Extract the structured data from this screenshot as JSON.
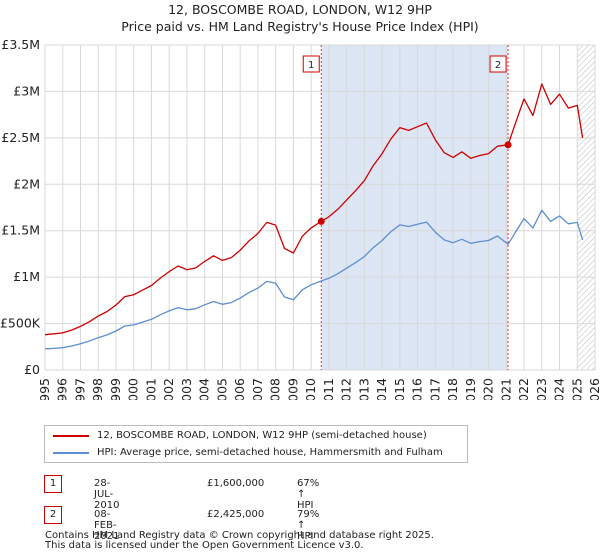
{
  "chart_data": {
    "type": "line",
    "title": "12, BOSCOMBE ROAD, LONDON, W12 9HP",
    "subtitle": "Price paid vs. HM Land Registry's House Price Index (HPI)",
    "xlim": [
      1995,
      2026
    ],
    "ylim": [
      0,
      3500000
    ],
    "x_ticks": [
      1995,
      1996,
      1997,
      1998,
      1999,
      2000,
      2001,
      2002,
      2003,
      2004,
      2005,
      2006,
      2007,
      2008,
      2009,
      2010,
      2011,
      2012,
      2013,
      2014,
      2015,
      2016,
      2017,
      2018,
      2019,
      2020,
      2021,
      2022,
      2023,
      2024,
      2025,
      2026
    ],
    "y_ticks": [
      {
        "value": 0,
        "label": "£0"
      },
      {
        "value": 500000,
        "label": "£500K"
      },
      {
        "value": 1000000,
        "label": "£1M"
      },
      {
        "value": 1500000,
        "label": "£1.5M"
      },
      {
        "value": 2000000,
        "label": "£2M"
      },
      {
        "value": 2500000,
        "label": "£2.5M"
      },
      {
        "value": 3000000,
        "label": "£3M"
      },
      {
        "value": 3500000,
        "label": "£3.5M"
      }
    ],
    "grid": true,
    "shaded_period": {
      "from": 2010.57,
      "to": 2021.1,
      "color": "#dde6f5"
    },
    "hatched_from": 2025.0,
    "series": [
      {
        "name": "12, BOSCOMBE ROAD, LONDON, W12 9HP (semi-detached house)",
        "color": "#cc0000",
        "x": [
          1995.0,
          1995.5,
          1996.0,
          1996.5,
          1997.0,
          1997.5,
          1998.0,
          1998.5,
          1999.0,
          1999.5,
          2000.0,
          2000.5,
          2001.0,
          2001.5,
          2002.0,
          2002.5,
          2003.0,
          2003.5,
          2004.0,
          2004.5,
          2005.0,
          2005.5,
          2006.0,
          2006.5,
          2007.0,
          2007.5,
          2008.0,
          2008.5,
          2009.0,
          2009.5,
          2010.0,
          2010.57,
          2011.0,
          2011.5,
          2012.0,
          2012.5,
          2013.0,
          2013.5,
          2014.0,
          2014.5,
          2015.0,
          2015.5,
          2016.0,
          2016.5,
          2017.0,
          2017.5,
          2018.0,
          2018.5,
          2019.0,
          2019.5,
          2020.0,
          2020.5,
          2021.1,
          2021.5,
          2022.0,
          2022.5,
          2023.0,
          2023.5,
          2024.0,
          2024.5,
          2025.0,
          2025.3
        ],
        "y": [
          380000,
          390000,
          400000,
          430000,
          470000,
          520000,
          580000,
          630000,
          700000,
          790000,
          810000,
          860000,
          910000,
          990000,
          1060000,
          1120000,
          1080000,
          1100000,
          1170000,
          1230000,
          1180000,
          1210000,
          1290000,
          1390000,
          1470000,
          1590000,
          1560000,
          1310000,
          1260000,
          1440000,
          1530000,
          1600000,
          1650000,
          1730000,
          1830000,
          1930000,
          2040000,
          2200000,
          2330000,
          2490000,
          2610000,
          2580000,
          2620000,
          2660000,
          2480000,
          2340000,
          2290000,
          2350000,
          2280000,
          2310000,
          2330000,
          2410000,
          2425000,
          2650000,
          2920000,
          2740000,
          3080000,
          2860000,
          2970000,
          2820000,
          2850000,
          2500000
        ]
      },
      {
        "name": "HPI: Average price, semi-detached house, Hammersmith and Fulham",
        "color": "#5b8fd1",
        "x": [
          1995.0,
          1995.5,
          1996.0,
          1996.5,
          1997.0,
          1997.5,
          1998.0,
          1998.5,
          1999.0,
          1999.5,
          2000.0,
          2000.5,
          2001.0,
          2001.5,
          2002.0,
          2002.5,
          2003.0,
          2003.5,
          2004.0,
          2004.5,
          2005.0,
          2005.5,
          2006.0,
          2006.5,
          2007.0,
          2007.5,
          2008.0,
          2008.5,
          2009.0,
          2009.5,
          2010.0,
          2010.57,
          2011.0,
          2011.5,
          2012.0,
          2012.5,
          2013.0,
          2013.5,
          2014.0,
          2014.5,
          2015.0,
          2015.5,
          2016.0,
          2016.5,
          2017.0,
          2017.5,
          2018.0,
          2018.5,
          2019.0,
          2019.5,
          2020.0,
          2020.5,
          2021.1,
          2021.5,
          2022.0,
          2022.5,
          2023.0,
          2023.5,
          2024.0,
          2024.5,
          2025.0,
          2025.3
        ],
        "y": [
          228000,
          233000,
          240000,
          258000,
          282000,
          312000,
          348000,
          378000,
          420000,
          474000,
          486000,
          516000,
          546000,
          594000,
          636000,
          672000,
          648000,
          660000,
          702000,
          738000,
          708000,
          726000,
          774000,
          834000,
          882000,
          954000,
          936000,
          786000,
          756000,
          864000,
          918000,
          958000,
          988000,
          1036000,
          1096000,
          1156000,
          1222000,
          1317000,
          1395000,
          1491000,
          1563000,
          1545000,
          1569000,
          1593000,
          1485000,
          1401000,
          1371000,
          1407000,
          1365000,
          1383000,
          1395000,
          1443000,
          1355000,
          1480000,
          1630000,
          1530000,
          1720000,
          1600000,
          1660000,
          1575000,
          1590000,
          1400000
        ]
      }
    ],
    "sales": [
      {
        "label": "1",
        "x": 2010.57,
        "y": 1600000,
        "date": "28-JUL-2010",
        "price": "£1,600,000",
        "hpi": "67% ↑ HPI"
      },
      {
        "label": "2",
        "x": 2021.1,
        "y": 2425000,
        "date": "08-FEB-2021",
        "price": "£2,425,000",
        "hpi": "79% ↑ HPI"
      }
    ]
  },
  "legend": {
    "property_label": "12, BOSCOMBE ROAD, LONDON, W12 9HP (semi-detached house)",
    "hpi_label": "HPI: Average price, semi-detached house, Hammersmith and Fulham",
    "property_color": "#cc0000",
    "hpi_color": "#5b8fd1"
  },
  "footer": {
    "line1": "Contains HM Land Registry data © Crown copyright and database right 2025.",
    "line2": "This data is licensed under the Open Government Licence v3.0."
  }
}
